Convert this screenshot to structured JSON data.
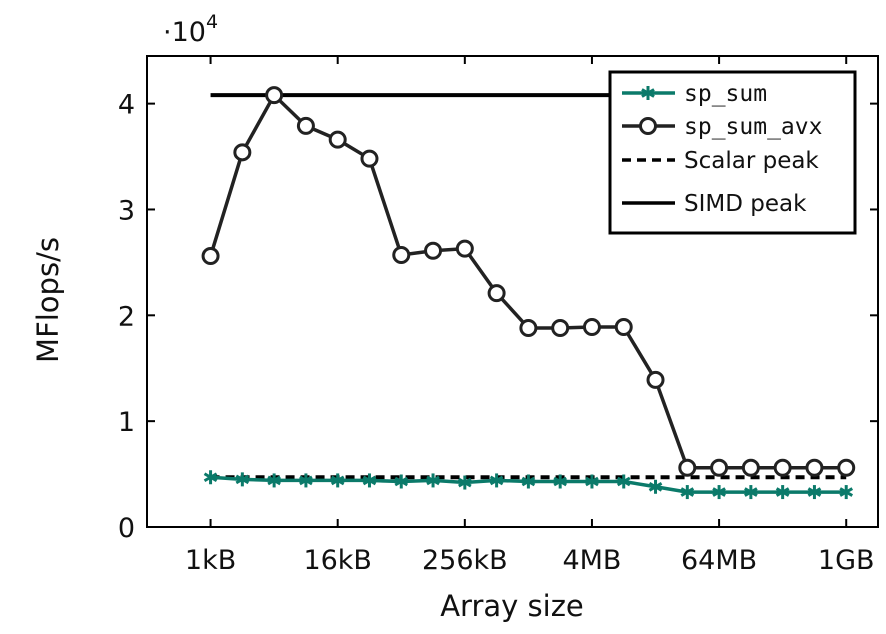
{
  "chart_data": {
    "type": "line",
    "xlabel": "Array size",
    "ylabel": "MFlops/s",
    "y_multiplier_label": "·10",
    "y_multiplier_exp": "4",
    "x_ticks": [
      {
        "pos": 0,
        "label": "1kB"
      },
      {
        "pos": 4,
        "label": "16kB"
      },
      {
        "pos": 8,
        "label": "256kB"
      },
      {
        "pos": 12,
        "label": "4MB"
      },
      {
        "pos": 16,
        "label": "64MB"
      },
      {
        "pos": 20,
        "label": "1GB"
      }
    ],
    "y_ticks": [
      {
        "value": 0,
        "label": "0"
      },
      {
        "value": 1,
        "label": "1"
      },
      {
        "value": 2,
        "label": "2"
      },
      {
        "value": 3,
        "label": "3"
      },
      {
        "value": 4,
        "label": "4"
      }
    ],
    "xlim": [
      -2,
      21
    ],
    "ylim": [
      0,
      4.45
    ],
    "grid": false,
    "legend_position": "top-right",
    "series": [
      {
        "name": "sp_sum",
        "style": "line-star",
        "color": "#0b7a6a",
        "x": [
          0,
          1,
          2,
          3,
          4,
          5,
          6,
          7,
          8,
          9,
          10,
          11,
          12,
          13,
          14,
          15,
          16,
          17,
          18,
          19,
          20
        ],
        "y": [
          0.47,
          0.45,
          0.44,
          0.44,
          0.44,
          0.44,
          0.43,
          0.44,
          0.42,
          0.44,
          0.43,
          0.43,
          0.43,
          0.43,
          0.38,
          0.33,
          0.33,
          0.33,
          0.33,
          0.33,
          0.33
        ]
      },
      {
        "name": "sp_sum_avx",
        "style": "line-circle",
        "color": "#222222",
        "x": [
          0,
          1,
          2,
          3,
          4,
          5,
          6,
          7,
          8,
          9,
          10,
          11,
          12,
          13,
          14,
          15,
          16,
          17,
          18,
          19,
          20
        ],
        "y": [
          2.56,
          3.54,
          4.08,
          3.79,
          3.66,
          3.48,
          2.57,
          2.61,
          2.63,
          2.21,
          1.88,
          1.88,
          1.89,
          1.89,
          1.39,
          0.56,
          0.56,
          0.56,
          0.56,
          0.56,
          0.56
        ]
      },
      {
        "name": "Scalar peak",
        "style": "dashed",
        "color": "#000000",
        "x": [
          0,
          20
        ],
        "y": [
          0.47,
          0.47
        ]
      },
      {
        "name": "SIMD peak",
        "style": "solid",
        "color": "#000000",
        "x": [
          0,
          20
        ],
        "y": [
          4.08,
          4.08
        ]
      }
    ]
  }
}
